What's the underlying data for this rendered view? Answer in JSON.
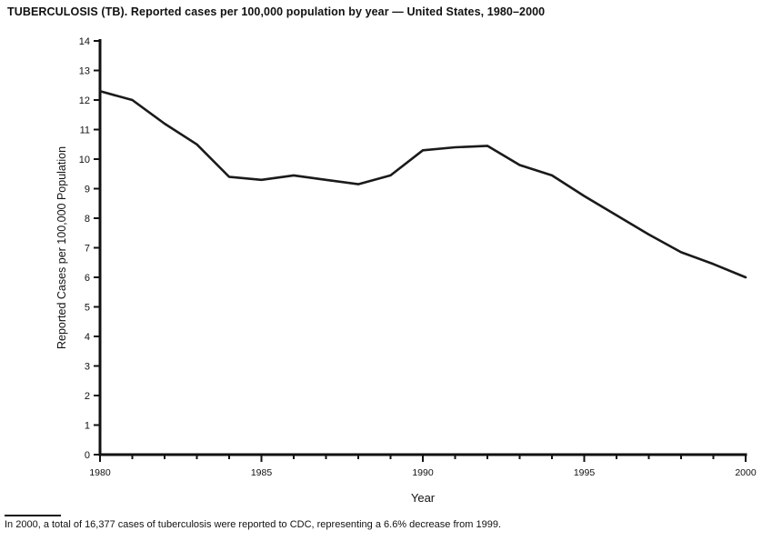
{
  "title": "TUBERCULOSIS (TB). Reported cases per 100,000 population by year — United States, 1980–2000",
  "footnote": "In 2000, a total of 16,377 cases of tuberculosis were reported to CDC,  representing a 6.6% decrease from 1999.",
  "chart_data": {
    "type": "line",
    "title": "TUBERCULOSIS (TB). Reported cases per 100,000 population by year — United States, 1980–2000",
    "xlabel": "Year",
    "ylabel": "Reported Cases per 100,000 Population",
    "x": [
      1980,
      1981,
      1982,
      1983,
      1984,
      1985,
      1986,
      1987,
      1988,
      1989,
      1990,
      1991,
      1992,
      1993,
      1994,
      1995,
      1996,
      1997,
      1998,
      1999,
      2000
    ],
    "values": [
      12.3,
      12.0,
      11.2,
      10.5,
      9.4,
      9.3,
      9.45,
      9.3,
      9.15,
      9.45,
      10.3,
      10.4,
      10.45,
      9.8,
      9.45,
      8.75,
      8.1,
      7.45,
      6.85,
      6.45,
      6.0
    ],
    "xlim": [
      1980,
      2000
    ],
    "ylim": [
      0,
      14
    ],
    "y_ticks": [
      0,
      1,
      2,
      3,
      4,
      5,
      6,
      7,
      8,
      9,
      10,
      11,
      12,
      13,
      14
    ],
    "x_tick_labels": [
      1980,
      1985,
      1990,
      1995,
      2000
    ],
    "grid": false,
    "legend": "none",
    "line_color": "#1a1a1a",
    "axis_color": "#111111"
  }
}
